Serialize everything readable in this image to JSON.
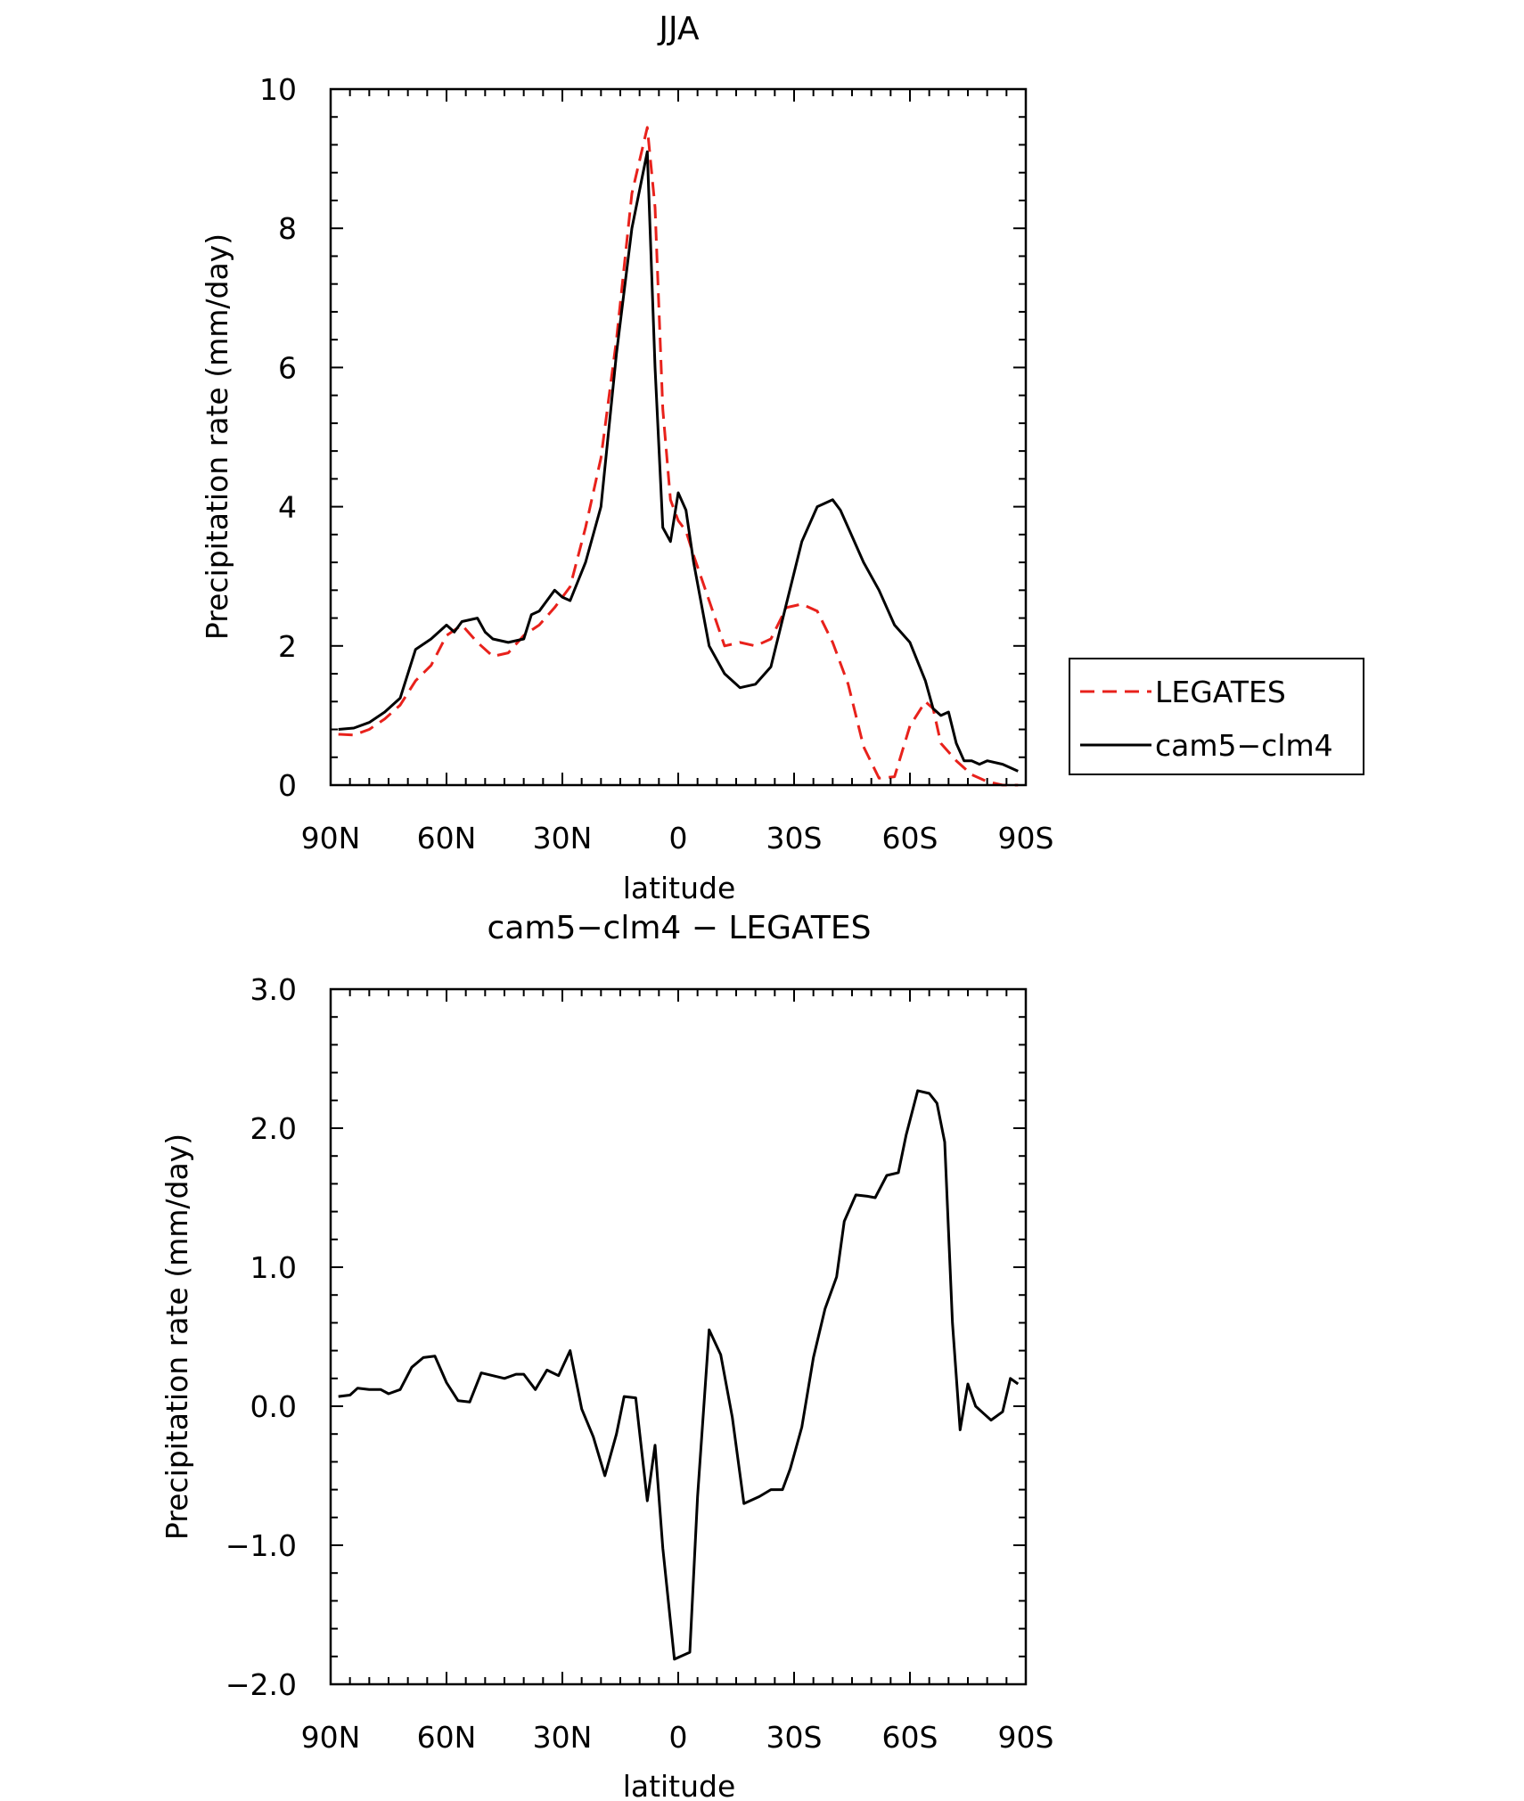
{
  "chart_data": [
    {
      "type": "line",
      "title": "JJA",
      "xlabel": "latitude",
      "ylabel": "Precipitation rate (mm/day)",
      "xlim": [
        90,
        -90
      ],
      "ylim": [
        0,
        10
      ],
      "x_ticks": [
        {
          "value": 90,
          "label": "90N"
        },
        {
          "value": 60,
          "label": "60N"
        },
        {
          "value": 30,
          "label": "30N"
        },
        {
          "value": 0,
          "label": "0"
        },
        {
          "value": -30,
          "label": "30S"
        },
        {
          "value": -60,
          "label": "60S"
        },
        {
          "value": -90,
          "label": "90S"
        }
      ],
      "y_ticks": [
        {
          "value": 0,
          "label": "0"
        },
        {
          "value": 2,
          "label": "2"
        },
        {
          "value": 4,
          "label": "4"
        },
        {
          "value": 6,
          "label": "6"
        },
        {
          "value": 8,
          "label": "8"
        },
        {
          "value": 10,
          "label": "10"
        }
      ],
      "legend": {
        "position": "right",
        "entries": [
          "LEGATES",
          "cam5−clm4"
        ]
      },
      "series": [
        {
          "name": "LEGATES",
          "color": "#e8211b",
          "dash": "dashed",
          "x": [
            88,
            84,
            80,
            76,
            72,
            68,
            64,
            60,
            56,
            52,
            48,
            44,
            40,
            36,
            32,
            28,
            24,
            20,
            16,
            12,
            8,
            6,
            4,
            2,
            0,
            -2,
            -4,
            -8,
            -12,
            -16,
            -20,
            -24,
            -28,
            -32,
            -36,
            -40,
            -44,
            -48,
            -52,
            -56,
            -60,
            -64,
            -66,
            -68,
            -72,
            -76,
            -80,
            -84,
            -88
          ],
          "values": [
            0.73,
            0.72,
            0.8,
            0.95,
            1.15,
            1.5,
            1.72,
            2.15,
            2.3,
            2.05,
            1.85,
            1.9,
            2.15,
            2.3,
            2.55,
            2.85,
            3.7,
            4.7,
            6.4,
            8.5,
            9.45,
            8.3,
            5.4,
            4.1,
            3.8,
            3.65,
            3.3,
            2.65,
            2.0,
            2.05,
            2.0,
            2.1,
            2.55,
            2.6,
            2.5,
            2.05,
            1.45,
            0.55,
            0.1,
            0.12,
            0.85,
            1.2,
            1.1,
            0.6,
            0.35,
            0.15,
            0.05,
            0.0,
            0.0
          ]
        },
        {
          "name": "cam5−clm4",
          "color": "#000000",
          "dash": "solid",
          "x": [
            88,
            84,
            80,
            76,
            72,
            68,
            64,
            60,
            58,
            56,
            52,
            50,
            48,
            44,
            40,
            38,
            36,
            34,
            32,
            30,
            28,
            24,
            20,
            16,
            12,
            8,
            6,
            4,
            2,
            0,
            -2,
            -4,
            -8,
            -12,
            -16,
            -20,
            -24,
            -28,
            -32,
            -36,
            -40,
            -42,
            -44,
            -48,
            -52,
            -56,
            -60,
            -64,
            -66,
            -68,
            -70,
            -72,
            -74,
            -76,
            -78,
            -80,
            -84,
            -88
          ],
          "values": [
            0.8,
            0.82,
            0.9,
            1.05,
            1.25,
            1.95,
            2.1,
            2.3,
            2.2,
            2.35,
            2.4,
            2.2,
            2.1,
            2.05,
            2.1,
            2.45,
            2.5,
            2.65,
            2.8,
            2.7,
            2.65,
            3.2,
            4.0,
            6.2,
            8.0,
            9.1,
            6.0,
            3.7,
            3.5,
            4.2,
            3.95,
            3.2,
            2.0,
            1.6,
            1.4,
            1.45,
            1.7,
            2.6,
            3.5,
            4.0,
            4.1,
            3.95,
            3.7,
            3.2,
            2.8,
            2.3,
            2.05,
            1.5,
            1.1,
            1.0,
            1.05,
            0.6,
            0.35,
            0.35,
            0.3,
            0.35,
            0.3,
            0.2
          ]
        }
      ]
    },
    {
      "type": "line",
      "title": "cam5−clm4 − LEGATES",
      "xlabel": "latitude",
      "ylabel": "Precipitation rate (mm/day)",
      "xlim": [
        90,
        -90
      ],
      "ylim": [
        -2.0,
        3.0
      ],
      "x_ticks": [
        {
          "value": 90,
          "label": "90N"
        },
        {
          "value": 60,
          "label": "60N"
        },
        {
          "value": 30,
          "label": "30N"
        },
        {
          "value": 0,
          "label": "0"
        },
        {
          "value": -30,
          "label": "30S"
        },
        {
          "value": -60,
          "label": "60S"
        },
        {
          "value": -90,
          "label": "90S"
        }
      ],
      "y_ticks": [
        {
          "value": -2,
          "label": "−2.0"
        },
        {
          "value": -1,
          "label": "−1.0"
        },
        {
          "value": 0,
          "label": "0.0"
        },
        {
          "value": 1,
          "label": "1.0"
        },
        {
          "value": 2,
          "label": "2.0"
        },
        {
          "value": 3,
          "label": "3.0"
        }
      ],
      "series": [
        {
          "name": "cam5−clm4 − LEGATES",
          "color": "#000000",
          "dash": "solid",
          "x": [
            88,
            85,
            83,
            80,
            77,
            75,
            72,
            69,
            66,
            63,
            60,
            57,
            54,
            51,
            48,
            45,
            42,
            40,
            37,
            34,
            31,
            28,
            25,
            22,
            19,
            16,
            14,
            11,
            8,
            6,
            4,
            1,
            -3,
            -5,
            -8,
            -11,
            -14,
            -17,
            -21,
            -24,
            -27,
            -29,
            -32,
            -35,
            -38,
            -41,
            -43,
            -46,
            -49,
            -51,
            -54,
            -57,
            -59,
            -62,
            -65,
            -67,
            -69,
            -71,
            -73,
            -75,
            -77,
            -79,
            -81,
            -84,
            -86,
            -88
          ],
          "values": [
            0.07,
            0.08,
            0.13,
            0.12,
            0.12,
            0.09,
            0.12,
            0.28,
            0.35,
            0.36,
            0.17,
            0.04,
            0.03,
            0.24,
            0.22,
            0.2,
            0.23,
            0.23,
            0.12,
            0.26,
            0.22,
            0.4,
            -0.02,
            -0.22,
            -0.5,
            -0.2,
            0.07,
            0.06,
            -0.68,
            -0.28,
            -1.02,
            -1.82,
            -1.77,
            -0.65,
            0.55,
            0.37,
            -0.08,
            -0.7,
            -0.65,
            -0.6,
            -0.6,
            -0.45,
            -0.15,
            0.35,
            0.7,
            0.93,
            1.33,
            1.52,
            1.51,
            1.5,
            1.66,
            1.68,
            1.95,
            2.27,
            2.25,
            2.18,
            1.9,
            0.6,
            -0.17,
            0.16,
            0.0,
            -0.05,
            -0.1,
            -0.04,
            0.2,
            0.16
          ]
        }
      ]
    }
  ]
}
